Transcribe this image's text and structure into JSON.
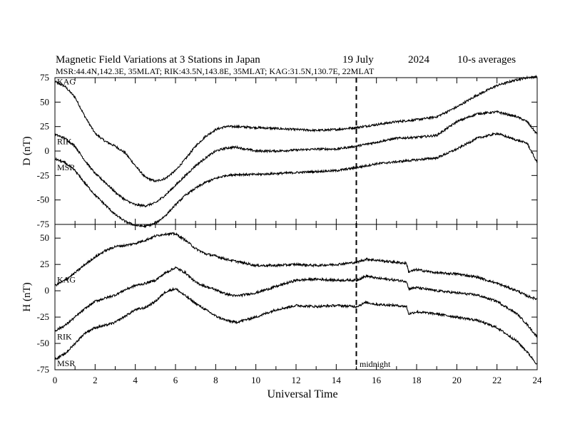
{
  "header": {
    "title": "Magnetic Field Variations at 3 Stations in Japan",
    "date": "19 July",
    "year": "2024",
    "averaging": "10-s averages",
    "stations_line": "MSR:44.4N,142.3E, 35MLAT;  RIK:43.5N,143.8E, 35MLAT;  KAG:31.5N,130.7E, 22MLAT"
  },
  "x_axis": {
    "label": "Universal Time",
    "tick_labels": [
      "0",
      "2",
      "4",
      "6",
      "8",
      "10",
      "12",
      "14",
      "16",
      "18",
      "20",
      "22",
      "24"
    ]
  },
  "panels": {
    "d": {
      "ylabel": "D (nT)",
      "tick_labels": [
        "75",
        "50",
        "25",
        "0",
        "-25",
        "-50",
        "-75"
      ]
    },
    "h": {
      "ylabel": "H (nT)",
      "tick_labels": [
        "50",
        "25",
        "0",
        "-25",
        "-50",
        "-75"
      ]
    }
  },
  "midnight_label": "midnight",
  "chart_data": [
    {
      "type": "line",
      "panel": "D",
      "ylabel": "D (nT)",
      "xlabel": "Universal Time",
      "xlim": [
        0,
        24
      ],
      "ylim": [
        -75,
        75
      ],
      "series": [
        {
          "name": "KAG",
          "x": [
            0,
            0.5,
            1,
            1.5,
            2,
            2.5,
            3,
            3.5,
            4,
            4.5,
            5,
            5.5,
            6,
            6.5,
            7,
            7.5,
            8,
            8.5,
            9,
            10,
            11,
            12,
            13,
            14,
            15,
            16,
            17,
            18,
            19,
            20,
            21,
            22,
            23,
            23.5,
            24
          ],
          "values": [
            71,
            66,
            55,
            35,
            18,
            10,
            5,
            -2,
            -15,
            -27,
            -31,
            -28,
            -20,
            -8,
            5,
            15,
            22,
            25,
            25,
            24,
            23,
            22,
            21,
            22,
            24,
            27,
            30,
            32,
            35,
            45,
            57,
            67,
            73,
            75,
            76
          ]
        },
        {
          "name": "RIK",
          "x": [
            0,
            0.5,
            1,
            1.5,
            2,
            2.5,
            3,
            3.5,
            4,
            4.5,
            5,
            5.5,
            6,
            6.5,
            7,
            7.5,
            8,
            8.5,
            9,
            10,
            11,
            12,
            13,
            14,
            15,
            16,
            17,
            18,
            19,
            20,
            21,
            22,
            23,
            23.5,
            24
          ],
          "values": [
            17,
            13,
            5,
            -10,
            -23,
            -32,
            -42,
            -50,
            -55,
            -56,
            -53,
            -45,
            -35,
            -25,
            -15,
            -7,
            0,
            3,
            4,
            0,
            0,
            1,
            2,
            2,
            5,
            9,
            13,
            14,
            16,
            30,
            38,
            40,
            35,
            30,
            17
          ]
        },
        {
          "name": "MSR",
          "x": [
            0,
            0.5,
            1,
            1.5,
            2,
            2.5,
            3,
            3.5,
            4,
            4.5,
            5,
            5.5,
            6,
            6.5,
            7,
            7.5,
            8,
            8.5,
            9,
            10,
            11,
            12,
            13,
            14,
            15,
            16,
            17,
            18,
            19,
            20,
            21,
            22,
            23,
            23.5,
            24
          ],
          "values": [
            -8,
            -12,
            -20,
            -33,
            -45,
            -55,
            -65,
            -72,
            -76,
            -77,
            -74,
            -66,
            -55,
            -45,
            -38,
            -32,
            -28,
            -25,
            -24,
            -24,
            -23,
            -22,
            -21,
            -20,
            -17,
            -13,
            -11,
            -9,
            -7,
            2,
            13,
            18,
            11,
            8,
            -12
          ]
        }
      ]
    },
    {
      "type": "line",
      "panel": "H",
      "ylabel": "H (nT)",
      "xlabel": "Universal Time",
      "xlim": [
        0,
        24
      ],
      "ylim": [
        -75,
        63
      ],
      "series": [
        {
          "name": "KAG",
          "x": [
            0,
            0.5,
            1,
            1.5,
            2,
            2.5,
            3,
            3.5,
            4,
            4.5,
            5,
            5.5,
            6,
            6.5,
            7,
            7.5,
            8,
            8.5,
            9,
            10,
            11,
            12,
            13,
            14,
            15,
            15.5,
            16,
            17,
            17.5,
            17.6,
            18,
            19,
            20,
            21,
            22,
            23,
            23.5,
            24
          ],
          "values": [
            5,
            10,
            17,
            25,
            32,
            38,
            42,
            43,
            45,
            48,
            52,
            54,
            54,
            48,
            40,
            35,
            33,
            30,
            28,
            24,
            24,
            25,
            24,
            25,
            27,
            30,
            29,
            27,
            26,
            18,
            20,
            17,
            16,
            13,
            7,
            0,
            -5,
            -8
          ]
        },
        {
          "name": "RIK",
          "x": [
            0,
            0.5,
            1,
            1.5,
            2,
            2.5,
            3,
            3.5,
            4,
            4.5,
            5,
            5.5,
            6,
            6.5,
            7,
            7.5,
            8,
            8.5,
            9,
            10,
            11,
            12,
            13,
            14,
            15,
            15.5,
            16,
            17,
            17.5,
            17.6,
            18,
            19,
            20,
            21,
            22,
            23,
            23.5,
            24
          ],
          "values": [
            -38,
            -33,
            -25,
            -17,
            -10,
            -7,
            -4,
            1,
            5,
            7,
            10,
            17,
            22,
            17,
            8,
            4,
            1,
            -3,
            -5,
            -2,
            4,
            10,
            11,
            10,
            10,
            14,
            12,
            10,
            9,
            2,
            3,
            0,
            -2,
            -4,
            -10,
            -22,
            -32,
            -44
          ]
        },
        {
          "name": "MSR",
          "x": [
            0,
            0.5,
            1,
            1.5,
            2,
            2.5,
            3,
            3.5,
            4,
            4.5,
            5,
            5.5,
            6,
            6.5,
            7,
            7.5,
            8,
            8.5,
            9,
            10,
            11,
            12,
            13,
            14,
            15,
            15.5,
            16,
            17,
            17.5,
            17.6,
            18,
            19,
            20,
            21,
            22,
            23,
            23.5,
            24
          ],
          "values": [
            -65,
            -60,
            -50,
            -40,
            -35,
            -33,
            -30,
            -24,
            -18,
            -16,
            -10,
            -1,
            2,
            -5,
            -12,
            -18,
            -24,
            -28,
            -30,
            -25,
            -18,
            -14,
            -15,
            -14,
            -15,
            -11,
            -13,
            -14,
            -15,
            -22,
            -20,
            -22,
            -25,
            -28,
            -35,
            -48,
            -58,
            -70
          ]
        }
      ]
    }
  ]
}
